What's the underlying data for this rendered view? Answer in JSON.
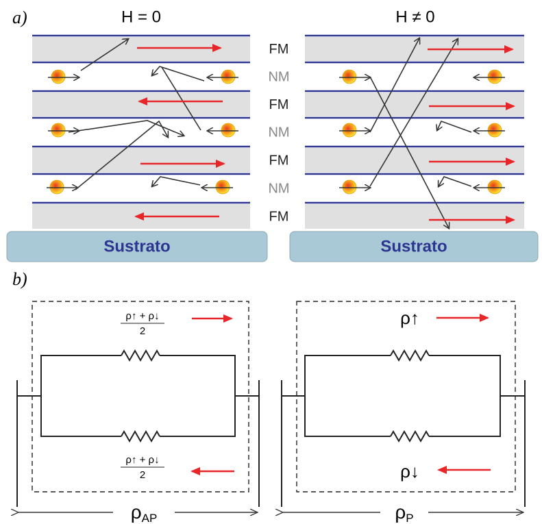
{
  "panel_a": {
    "label": "a)",
    "left": {
      "title": "H = 0",
      "substrate": "Sustrato"
    },
    "right": {
      "title": "H ≠ 0",
      "substrate": "Sustrato"
    },
    "layers": [
      "FM",
      "NM",
      "FM",
      "NM",
      "FM",
      "NM",
      "FM"
    ]
  },
  "panel_b": {
    "label": "b)",
    "left": {
      "top_numerator": "ρ↑ + ρ↓",
      "top_denominator": "2",
      "bottom_numerator": "ρ↑ + ρ↓",
      "bottom_denominator": "2",
      "total_symbol": "ρ",
      "total_subscript": "AP"
    },
    "right": {
      "top": "ρ↑",
      "bottom": "ρ↓",
      "total_symbol": "ρ",
      "total_subscript": "P"
    }
  }
}
